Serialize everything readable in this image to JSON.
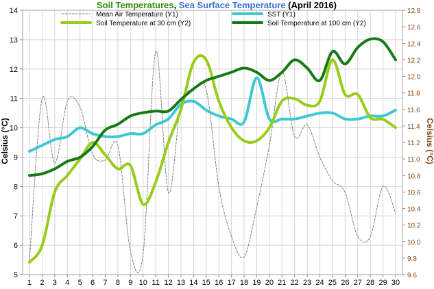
{
  "chart_data": {
    "type": "line",
    "title_parts": [
      {
        "text": "Soil Temperatures",
        "color": "#2e8b00"
      },
      {
        "text": ", ",
        "color": "#000000"
      },
      {
        "text": "Sea Surface Temperature",
        "color": "#3a6fd8"
      },
      {
        "text": " (April 2016)",
        "color": "#000000"
      }
    ],
    "ylabel_left": "Celsius (°C)",
    "ylabel_right": "Celsius (°C)",
    "ylabel_right_color": "#8b4513",
    "x": [
      1,
      2,
      3,
      4,
      5,
      6,
      7,
      8,
      9,
      10,
      11,
      12,
      13,
      14,
      15,
      16,
      17,
      18,
      19,
      20,
      21,
      22,
      23,
      24,
      25,
      26,
      27,
      28,
      29,
      30
    ],
    "x_ticks": [
      "1",
      "2",
      "3",
      "4",
      "5",
      "6",
      "7",
      "8",
      "9",
      "10",
      "11",
      "12",
      "13",
      "14",
      "15",
      "16",
      "17",
      "18",
      "19",
      "20",
      "21",
      "22",
      "23",
      "24",
      "25",
      "26",
      "27",
      "28",
      "29",
      "30"
    ],
    "y_left_range": [
      5,
      14
    ],
    "y_left_ticks": [
      "5",
      "6",
      "7",
      "8",
      "9",
      "10",
      "11",
      "12",
      "13",
      "14"
    ],
    "y_right_range": [
      9.6,
      12.8
    ],
    "y_right_ticks": [
      "9.6",
      "9.8",
      "10.0",
      "10.2",
      "10.4",
      "10.6",
      "10.8",
      "11.0",
      "11.2",
      "11.4",
      "11.6",
      "11.8",
      "12.0",
      "12.2",
      "12.4",
      "12.6",
      "12.8"
    ],
    "grid": true,
    "legend_position": "top",
    "series": [
      {
        "name": "Mean Air Temperature (Y1)",
        "axis": "left",
        "color": "#808080",
        "style": "dashed",
        "width": 1,
        "values": [
          5.5,
          11.0,
          8.8,
          10.9,
          10.7,
          9.1,
          8.9,
          9.4,
          5.8,
          5.7,
          12.6,
          7.8,
          10.8,
          11.3,
          11.3,
          8.0,
          6.3,
          5.6,
          7.3,
          9.4,
          11.9,
          9.7,
          10.1,
          9.0,
          8.2,
          7.8,
          6.3,
          6.3,
          8.0,
          7.1
        ]
      },
      {
        "name": "SST (Y1)",
        "axis": "left",
        "color": "#3fc8d4",
        "style": "solid",
        "width": 4,
        "values": [
          9.2,
          9.4,
          9.6,
          9.7,
          10.0,
          9.8,
          9.7,
          9.7,
          9.8,
          9.8,
          10.1,
          10.3,
          10.8,
          10.9,
          10.6,
          10.4,
          10.3,
          10.2,
          11.7,
          10.3,
          10.3,
          10.3,
          10.4,
          10.5,
          10.5,
          10.3,
          10.3,
          10.4,
          10.4,
          10.6
        ]
      },
      {
        "name": "Soil Temperature at 30 cm (Y2)",
        "axis": "right",
        "color": "#99cc1a",
        "style": "solid",
        "width": 4,
        "values": [
          9.75,
          9.95,
          10.6,
          10.8,
          11.0,
          11.2,
          11.05,
          10.88,
          10.92,
          10.45,
          10.72,
          11.2,
          11.6,
          12.17,
          12.2,
          11.7,
          11.38,
          11.22,
          11.22,
          11.38,
          11.7,
          11.73,
          11.65,
          11.7,
          12.2,
          11.78,
          11.78,
          11.5,
          11.48,
          11.38
        ]
      },
      {
        "name": "Soil Temperature at 100 cm (Y2)",
        "axis": "right",
        "color": "#157a15",
        "style": "solid",
        "width": 4,
        "values": [
          10.8,
          10.82,
          10.88,
          10.97,
          11.02,
          11.15,
          11.35,
          11.42,
          11.52,
          11.56,
          11.58,
          11.58,
          11.72,
          11.85,
          11.95,
          12.0,
          12.05,
          12.1,
          12.05,
          11.95,
          12.05,
          12.2,
          12.1,
          11.95,
          12.3,
          12.15,
          12.35,
          12.45,
          12.42,
          12.2
        ]
      }
    ]
  }
}
